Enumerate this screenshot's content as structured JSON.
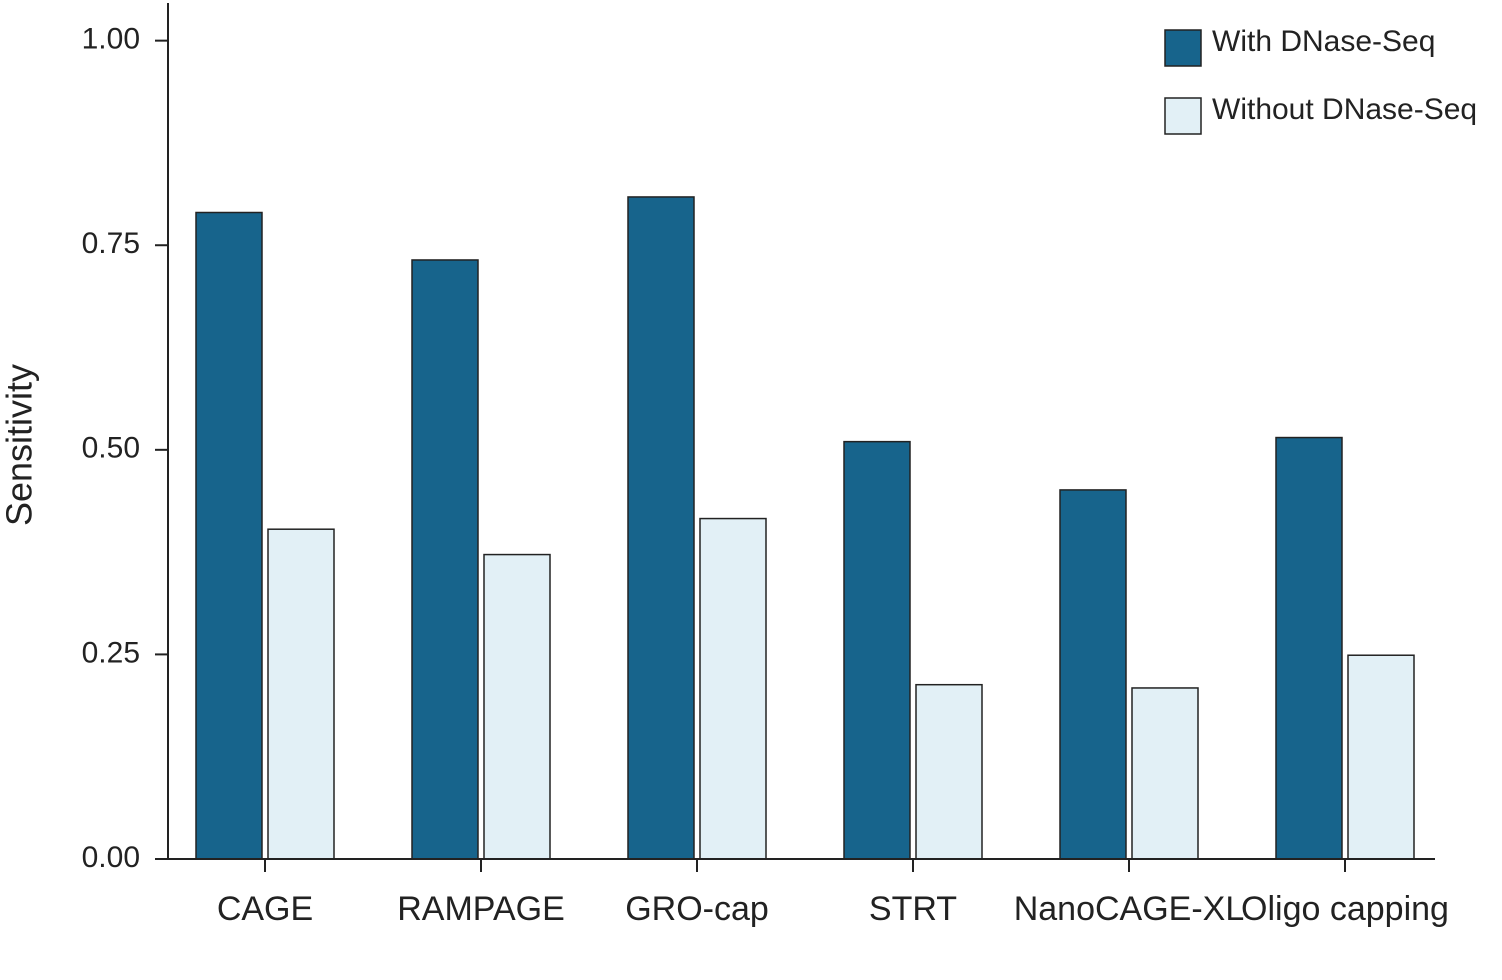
{
  "chart_data": {
    "type": "bar",
    "y_label": "Sensitivity",
    "categories": [
      "CAGE",
      "RAMPAGE",
      "GRO-cap",
      "STRT",
      "NanoCAGE-XL",
      "Oligo capping"
    ],
    "series": [
      {
        "name": "With DNase-Seq",
        "color": "#17648c",
        "values": [
          0.79,
          0.732,
          0.809,
          0.51,
          0.451,
          0.515
        ]
      },
      {
        "name": "Without DNase-Seq",
        "color": "#e2f0f6",
        "values": [
          0.403,
          0.372,
          0.416,
          0.213,
          0.209,
          0.249
        ]
      }
    ],
    "ylim": [
      0,
      1.046
    ],
    "yticks": [
      {
        "value": 0,
        "label": "0.00"
      },
      {
        "value": 0.25,
        "label": "0.25"
      },
      {
        "value": 0.5,
        "label": "0.50"
      },
      {
        "value": 0.75,
        "label": "0.75"
      },
      {
        "value": 1,
        "label": "1.00"
      }
    ],
    "grid": false,
    "legend": "top-right"
  }
}
